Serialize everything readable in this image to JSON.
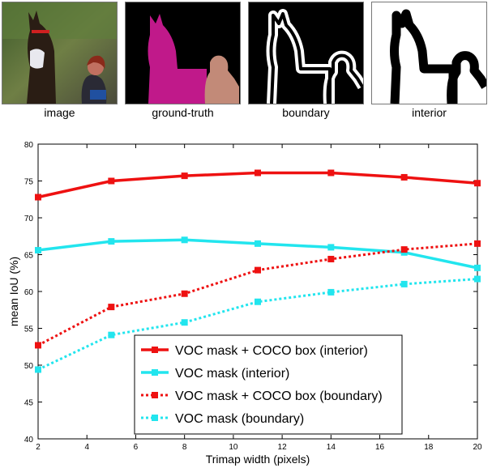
{
  "panels": [
    {
      "label": "image"
    },
    {
      "label": "ground-truth"
    },
    {
      "label": "boundary"
    },
    {
      "label": "interior"
    }
  ],
  "chart_data": {
    "type": "line",
    "xlabel": "Trimap width (pixels)",
    "ylabel": "mean IoU (%)",
    "xlim": [
      2,
      20
    ],
    "ylim": [
      40,
      80
    ],
    "xticks": [
      2,
      4,
      6,
      8,
      10,
      12,
      14,
      16,
      18,
      20
    ],
    "yticks": [
      40,
      45,
      50,
      55,
      60,
      65,
      70,
      75,
      80
    ],
    "grid": false,
    "legend_position": "bottom-right",
    "x": [
      2,
      5,
      8,
      11,
      14,
      17,
      20
    ],
    "series": [
      {
        "name": "VOC mask + COCO box (interior)",
        "color": "#ee1111",
        "style": "solid",
        "values": [
          72.8,
          75.0,
          75.7,
          76.1,
          76.1,
          75.5,
          74.7
        ]
      },
      {
        "name": "VOC mask (interior)",
        "color": "#22e5ee",
        "style": "solid",
        "values": [
          65.6,
          66.8,
          67.0,
          66.5,
          66.0,
          65.3,
          63.2
        ]
      },
      {
        "name": "VOC mask + COCO box (boundary)",
        "color": "#ee1111",
        "style": "dotted",
        "values": [
          52.7,
          57.9,
          59.7,
          62.9,
          64.4,
          65.7,
          66.5
        ]
      },
      {
        "name": "VOC mask (boundary)",
        "color": "#22e5ee",
        "style": "dotted",
        "values": [
          49.4,
          54.1,
          55.8,
          58.6,
          59.9,
          61.0,
          61.7
        ]
      }
    ]
  }
}
